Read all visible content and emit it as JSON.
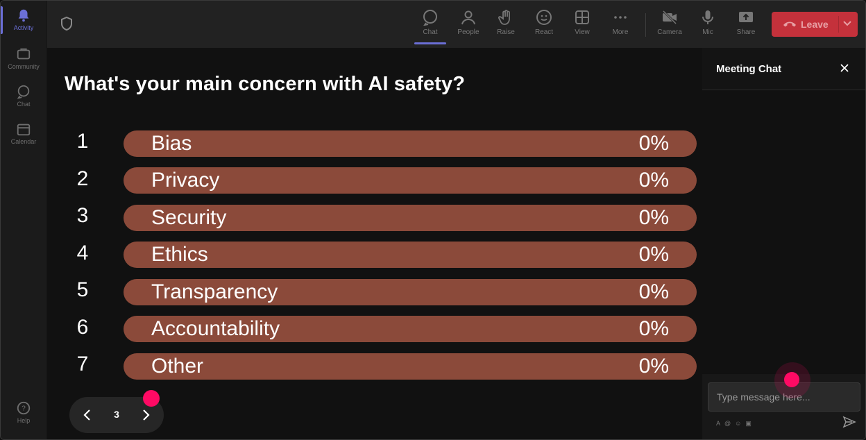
{
  "rail": {
    "items": [
      {
        "label": "Activity",
        "icon": "bell-icon"
      },
      {
        "label": "Community",
        "icon": "community-icon"
      },
      {
        "label": "Chat",
        "icon": "chat-bubble-icon"
      },
      {
        "label": "Calendar",
        "icon": "calendar-icon"
      }
    ],
    "help_label": "Help"
  },
  "toolbar": {
    "items": [
      {
        "label": "Chat",
        "icon": "chat-bubble-icon"
      },
      {
        "label": "People",
        "icon": "people-icon"
      },
      {
        "label": "Raise",
        "icon": "hand-icon"
      },
      {
        "label": "React",
        "icon": "smiley-icon"
      },
      {
        "label": "View",
        "icon": "grid-icon"
      },
      {
        "label": "More",
        "icon": "more-icon"
      },
      {
        "label": "Camera",
        "icon": "camera-off-icon"
      },
      {
        "label": "Mic",
        "icon": "mic-icon"
      },
      {
        "label": "Share",
        "icon": "share-icon"
      }
    ],
    "leave_label": "Leave"
  },
  "poll": {
    "question": "What's your main concern with AI safety?",
    "options": [
      {
        "number": "1",
        "label": "Bias",
        "percent": "0%"
      },
      {
        "number": "2",
        "label": "Privacy",
        "percent": "0%"
      },
      {
        "number": "3",
        "label": "Security",
        "percent": "0%"
      },
      {
        "number": "4",
        "label": "Ethics",
        "percent": "0%"
      },
      {
        "number": "5",
        "label": "Transparency",
        "percent": "0%"
      },
      {
        "number": "6",
        "label": "Accountability",
        "percent": "0%"
      },
      {
        "number": "7",
        "label": "Other",
        "percent": "0%"
      }
    ]
  },
  "pager": {
    "page": "3"
  },
  "chat": {
    "title": "Meeting Chat",
    "placeholder": "Type message here..."
  },
  "colors": {
    "bar": "#8b4a3a",
    "accent": "#6b6fd6",
    "leave": "#c4313b",
    "cursor_dot": "#ff0a64"
  }
}
